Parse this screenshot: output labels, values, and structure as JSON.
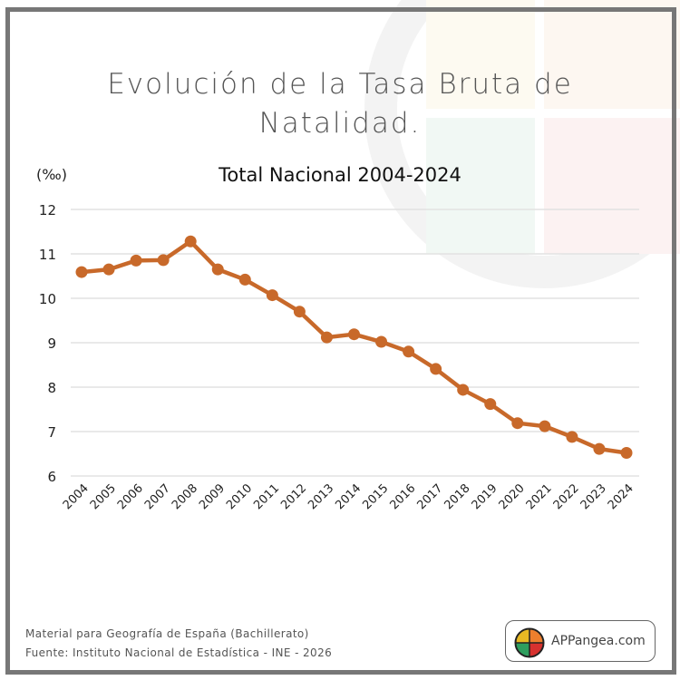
{
  "header": {
    "title_line1": "Evolución de la Tasa Bruta de",
    "title_line2": "Natalidad.",
    "subtitle": "Total Nacional 2004-2024",
    "unit": "(‰)"
  },
  "footer": {
    "line1": "Material para Geografía de España (Bachillerato)",
    "line2": "Fuente: Instituto Nacional de Estadística - INE - 2026"
  },
  "badge": {
    "text": "APPangea.com",
    "icon": "puzzle-globe-logo"
  },
  "colors": {
    "line": "#c8692a",
    "grid": "#e2e2e2",
    "frame": "#777777",
    "logo_yellow": "#e8b923",
    "logo_orange": "#ee7f2d",
    "logo_green": "#2e9e5e",
    "logo_red": "#d7312f"
  },
  "chart_data": {
    "type": "line",
    "title": "Evolución de la Tasa Bruta de Natalidad.",
    "subtitle": "Total Nacional 2004-2024",
    "xlabel": "",
    "ylabel": "(‰)",
    "ylim": [
      6,
      12
    ],
    "yticks": [
      "6",
      "7",
      "8",
      "9",
      "10",
      "11",
      "12"
    ],
    "grid": true,
    "legend": "none",
    "categories": [
      "2004",
      "2005",
      "2006",
      "2007",
      "2008",
      "2009",
      "2010",
      "2011",
      "2012",
      "2013",
      "2014",
      "2015",
      "2016",
      "2017",
      "2018",
      "2019",
      "2020",
      "2021",
      "2022",
      "2023",
      "2024"
    ],
    "series": [
      {
        "name": "Tasa Bruta de Natalidad",
        "values": [
          10.59,
          10.65,
          10.85,
          10.86,
          11.28,
          10.65,
          10.42,
          10.07,
          9.7,
          9.12,
          9.19,
          9.02,
          8.8,
          8.41,
          7.94,
          7.62,
          7.19,
          7.12,
          6.88,
          6.61,
          6.52
        ]
      }
    ]
  }
}
